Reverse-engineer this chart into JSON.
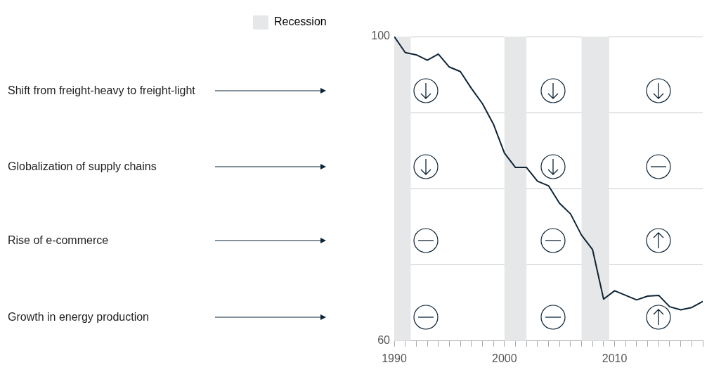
{
  "chart_data": {
    "type": "line",
    "x": [
      1990,
      1991,
      1992,
      1993,
      1994,
      1995,
      1996,
      1997,
      1998,
      1999,
      2000,
      2001,
      2002,
      2003,
      2004,
      2005,
      2006,
      2007,
      2008,
      2009,
      2010,
      2011,
      2012,
      2013,
      2014,
      2015,
      2016,
      2017,
      2018
    ],
    "series": [
      {
        "color": "#0d2436",
        "values": [
          100,
          97.9,
          97.6,
          96.9,
          97.7,
          96.0,
          95.4,
          93.2,
          91.2,
          88.5,
          84.7,
          82.8,
          82.8,
          81.0,
          80.4,
          78.1,
          76.7,
          73.9,
          72.0,
          65.5,
          66.6,
          66.0,
          65.4,
          65.9,
          66.0,
          64.5,
          64.1,
          64.4,
          65.2
        ]
      }
    ],
    "xlim": [
      1990,
      2018
    ],
    "xticks": [
      1990,
      {
        "value": 1991,
        "label": null
      },
      {
        "value": 1992,
        "label": null
      },
      {
        "value": 1993,
        "label": null
      },
      {
        "value": 1994,
        "label": null
      },
      {
        "value": 1995,
        "label": null
      },
      {
        "value": 1996,
        "label": null
      },
      {
        "value": 1997,
        "label": null
      },
      {
        "value": 1998,
        "label": null
      },
      {
        "value": 1999,
        "label": null
      },
      2000,
      {
        "value": 2001,
        "label": null
      },
      {
        "value": 2002,
        "label": null
      },
      {
        "value": 2003,
        "label": null
      },
      {
        "value": 2004,
        "label": null
      },
      {
        "value": 2005,
        "label": null
      },
      {
        "value": 2006,
        "label": null
      },
      {
        "value": 2007,
        "label": null
      },
      {
        "value": 2008,
        "label": null
      },
      {
        "value": 2009,
        "label": null
      },
      2010,
      {
        "value": 2011,
        "label": null
      },
      {
        "value": 2012,
        "label": null
      },
      {
        "value": 2013,
        "label": null
      },
      {
        "value": 2014,
        "label": null
      },
      {
        "value": 2015,
        "label": null
      },
      {
        "value": 2016,
        "label": null
      },
      {
        "value": 2017,
        "label": null
      },
      {
        "value": 2018,
        "label": null
      }
    ],
    "ylim": [
      60,
      100
    ],
    "yticks": [
      60,
      {
        "value": 70,
        "label": null
      },
      {
        "value": 80,
        "label": null
      },
      {
        "value": 90,
        "label": null
      },
      100
    ],
    "grid": "y",
    "legend": "top left",
    "bands": [
      {
        "axis": "x",
        "from": 1990,
        "to": 1991.5,
        "label": "Recession",
        "color": "#e6e7e9"
      },
      {
        "axis": "x",
        "from": 2000,
        "to": 2002,
        "color": "#e6e7e9"
      },
      {
        "axis": "x",
        "from": 2007,
        "to": 2009.5,
        "color": "#e6e7e9"
      }
    ],
    "annotations": [
      "Shift from freight-heavy to freight-light",
      "Globalization of supply chains",
      "Rise of e-commerce",
      "Growth in energy production"
    ]
  }
}
